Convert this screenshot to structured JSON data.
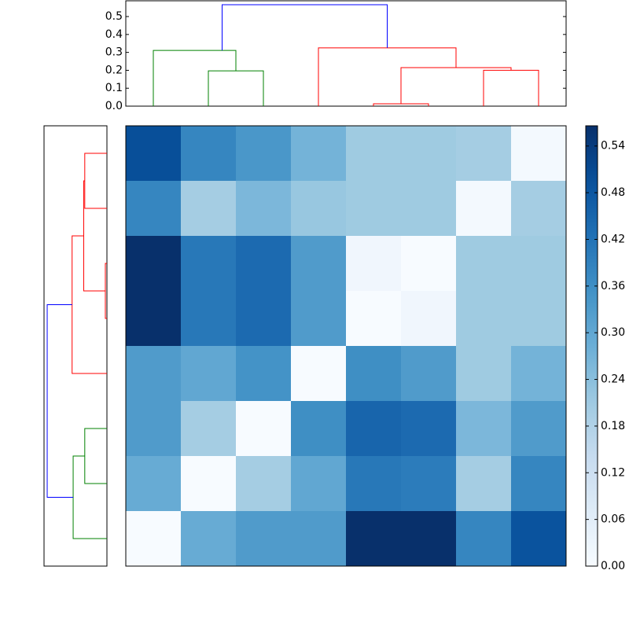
{
  "chart_data": [
    {
      "type": "dendrogram",
      "orientation": "top",
      "xlim": [
        0,
        80
      ],
      "ylim": [
        0,
        0.588
      ],
      "yticks": [
        {
          "value": 0,
          "label": "0.0"
        },
        0.1,
        0.2,
        0.3,
        0.4,
        0.5
      ],
      "links": [
        {
          "color": "#008000",
          "positions": [
            15,
            15,
            25,
            25
          ],
          "heights": [
            0,
            0.197,
            0.197,
            0
          ]
        },
        {
          "color": "#008000",
          "positions": [
            5,
            5,
            20,
            20
          ],
          "heights": [
            0,
            0.311,
            0.311,
            0.197
          ]
        },
        {
          "color": "#ff0000",
          "positions": [
            45,
            45,
            55,
            55
          ],
          "heights": [
            0,
            0.013,
            0.013,
            0
          ]
        },
        {
          "color": "#ff0000",
          "positions": [
            65,
            65,
            75,
            75
          ],
          "heights": [
            0,
            0.2,
            0.2,
            0
          ]
        },
        {
          "color": "#ff0000",
          "positions": [
            50,
            50,
            70,
            70
          ],
          "heights": [
            0.013,
            0.215,
            0.215,
            0.2
          ]
        },
        {
          "color": "#ff0000",
          "positions": [
            35,
            35,
            60,
            60
          ],
          "heights": [
            0,
            0.325,
            0.325,
            0.215
          ]
        },
        {
          "color": "#0000ff",
          "positions": [
            17.5,
            17.5,
            47.5,
            47.5
          ],
          "heights": [
            0.311,
            0.566,
            0.566,
            0.325
          ]
        }
      ]
    },
    {
      "type": "dendrogram",
      "orientation": "left",
      "xlim": [
        0.596,
        0
      ],
      "ylim": [
        0,
        80
      ],
      "links": [
        {
          "color": "#ff0000",
          "positions": [
            25,
            25,
            35,
            35
          ],
          "heights": [
            0,
            0.015,
            0.015,
            0
          ]
        },
        {
          "color": "#ff0000",
          "positions": [
            5,
            5,
            15,
            15
          ],
          "heights": [
            0,
            0.21,
            0.21,
            0
          ]
        },
        {
          "color": "#ff0000",
          "positions": [
            10,
            10,
            30,
            30
          ],
          "heights": [
            0.21,
            0.22,
            0.22,
            0.015
          ]
        },
        {
          "color": "#ff0000",
          "positions": [
            20,
            20,
            45,
            45
          ],
          "heights": [
            0.22,
            0.33,
            0.33,
            0
          ]
        },
        {
          "color": "#008000",
          "positions": [
            55,
            55,
            65,
            65
          ],
          "heights": [
            0,
            0.21,
            0.21,
            0
          ]
        },
        {
          "color": "#008000",
          "positions": [
            60,
            60,
            75,
            75
          ],
          "heights": [
            0.21,
            0.32,
            0.32,
            0
          ]
        },
        {
          "color": "#0000ff",
          "positions": [
            32.5,
            32.5,
            67.5,
            67.5
          ],
          "heights": [
            0.33,
            0.566,
            0.566,
            0.32
          ]
        }
      ]
    },
    {
      "type": "heatmap",
      "colormap": "Blues",
      "zlim": [
        0,
        0.566
      ],
      "values": [
        [
          0.5,
          0.38,
          0.34,
          0.27,
          0.21,
          0.21,
          0.2,
          0.01
        ],
        [
          0.38,
          0.2,
          0.26,
          0.22,
          0.21,
          0.21,
          0.01,
          0.2
        ],
        [
          0.566,
          0.41,
          0.44,
          0.33,
          0.02,
          0.0,
          0.21,
          0.21
        ],
        [
          0.566,
          0.41,
          0.44,
          0.33,
          0.0,
          0.02,
          0.21,
          0.21
        ],
        [
          0.33,
          0.3,
          0.35,
          0.0,
          0.36,
          0.33,
          0.21,
          0.27
        ],
        [
          0.33,
          0.2,
          0.0,
          0.36,
          0.45,
          0.44,
          0.26,
          0.33
        ],
        [
          0.29,
          0.0,
          0.2,
          0.3,
          0.41,
          0.4,
          0.2,
          0.38
        ],
        [
          0.0,
          0.29,
          0.33,
          0.33,
          0.566,
          0.566,
          0.38,
          0.49
        ]
      ],
      "colorbar_ticks": [
        {
          "value": 0,
          "label": "0.00"
        },
        0.06,
        0.12,
        0.18,
        0.24,
        {
          "value": 0.3,
          "label": "0.30"
        },
        0.36,
        0.42,
        0.48,
        0.54
      ]
    }
  ]
}
